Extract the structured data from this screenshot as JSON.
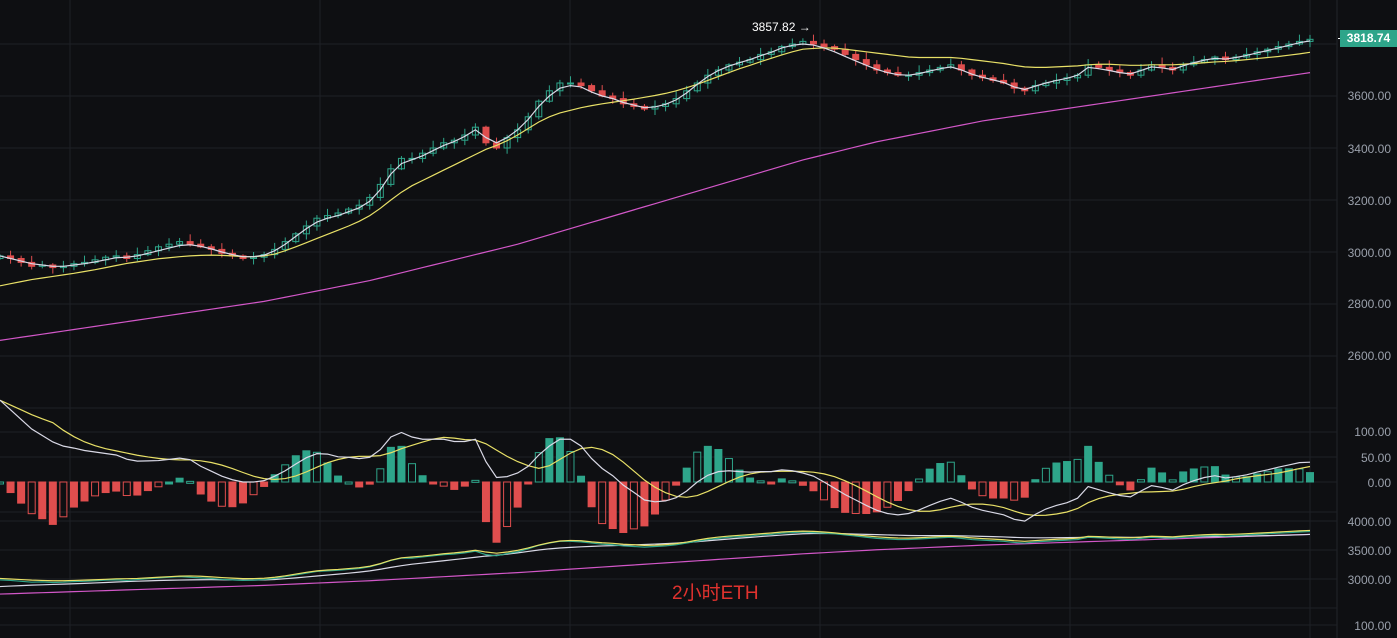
{
  "chart_data": {
    "type": "candlestick",
    "title": "2小时ETH",
    "symbol": "ETH",
    "interval": "2h",
    "last_price": "3818.74",
    "high_annotation": "3857.82",
    "high_arrow": "→",
    "panes": [
      {
        "name": "price",
        "yticks": [
          "3600.00",
          "3400.00",
          "3200.00",
          "3000.00",
          "2800.00",
          "2600.00"
        ],
        "ylim": [
          2540,
          3880
        ],
        "series": [
          {
            "name": "MA-fast",
            "color": "#d9d9e6"
          },
          {
            "name": "MA-mid",
            "color": "#e8e067"
          },
          {
            "name": "MA-slow",
            "color": "#d257c8"
          }
        ],
        "close_path": [
          2985,
          2975,
          2960,
          2945,
          2950,
          2940,
          2945,
          2955,
          2960,
          2970,
          2980,
          2985,
          2975,
          2990,
          3005,
          3020,
          3030,
          3040,
          3030,
          3020,
          3010,
          2995,
          2985,
          2975,
          2980,
          2990,
          3010,
          3040,
          3070,
          3100,
          3130,
          3140,
          3150,
          3165,
          3180,
          3210,
          3260,
          3320,
          3360,
          3360,
          3380,
          3400,
          3420,
          3430,
          3450,
          3480,
          3420,
          3400,
          3440,
          3470,
          3520,
          3580,
          3620,
          3650,
          3650,
          3640,
          3620,
          3600,
          3590,
          3570,
          3560,
          3550,
          3560,
          3570,
          3590,
          3620,
          3650,
          3680,
          3700,
          3720,
          3730,
          3740,
          3760,
          3770,
          3790,
          3800,
          3810,
          3800,
          3790,
          3780,
          3760,
          3740,
          3720,
          3700,
          3690,
          3680,
          3680,
          3690,
          3700,
          3710,
          3720,
          3700,
          3680,
          3670,
          3660,
          3650,
          3630,
          3620,
          3640,
          3650,
          3660,
          3670,
          3680,
          3720,
          3710,
          3700,
          3690,
          3680,
          3700,
          3720,
          3710,
          3700,
          3720,
          3730,
          3740,
          3750,
          3740,
          3750,
          3760,
          3770,
          3780,
          3790,
          3800,
          3810,
          3818
        ],
        "ma_fast": [
          2985,
          2975,
          2965,
          2955,
          2950,
          2945,
          2945,
          2950,
          2955,
          2962,
          2970,
          2978,
          2980,
          2985,
          2995,
          3005,
          3015,
          3025,
          3028,
          3022,
          3012,
          3000,
          2990,
          2982,
          2982,
          2988,
          3005,
          3030,
          3060,
          3090,
          3115,
          3130,
          3140,
          3155,
          3170,
          3195,
          3240,
          3300,
          3340,
          3355,
          3370,
          3390,
          3410,
          3425,
          3445,
          3470,
          3440,
          3420,
          3440,
          3470,
          3510,
          3560,
          3600,
          3630,
          3640,
          3635,
          3615,
          3600,
          3590,
          3575,
          3565,
          3555,
          3558,
          3568,
          3585,
          3612,
          3645,
          3675,
          3698,
          3715,
          3728,
          3740,
          3755,
          3768,
          3785,
          3795,
          3800,
          3796,
          3785,
          3770,
          3752,
          3735,
          3718,
          3702,
          3690,
          3682,
          3680,
          3686,
          3696,
          3705,
          3712,
          3700,
          3684,
          3672,
          3662,
          3652,
          3635,
          3625,
          3638,
          3650,
          3660,
          3668,
          3680,
          3710,
          3705,
          3698,
          3690,
          3685,
          3698,
          3712,
          3708,
          3702,
          3716,
          3728,
          3738,
          3745,
          3742,
          3748,
          3756,
          3766,
          3775,
          3785,
          3795,
          3805,
          3812
        ],
        "ma_mid": [
          2870,
          2878,
          2886,
          2894,
          2900,
          2906,
          2912,
          2918,
          2925,
          2932,
          2940,
          2948,
          2956,
          2962,
          2968,
          2974,
          2978,
          2982,
          2985,
          2987,
          2988,
          2987,
          2985,
          2982,
          2982,
          2985,
          2992,
          3005,
          3020,
          3036,
          3052,
          3068,
          3084,
          3100,
          3118,
          3140,
          3168,
          3200,
          3230,
          3255,
          3275,
          3295,
          3315,
          3335,
          3355,
          3375,
          3395,
          3410,
          3428,
          3450,
          3475,
          3500,
          3520,
          3535,
          3545,
          3555,
          3563,
          3570,
          3576,
          3582,
          3588,
          3595,
          3602,
          3610,
          3620,
          3632,
          3645,
          3660,
          3675,
          3690,
          3705,
          3718,
          3732,
          3745,
          3758,
          3770,
          3780,
          3783,
          3785,
          3784,
          3780,
          3775,
          3770,
          3765,
          3760,
          3755,
          3750,
          3748,
          3748,
          3748,
          3748,
          3745,
          3740,
          3735,
          3730,
          3725,
          3718,
          3712,
          3710,
          3710,
          3712,
          3714,
          3716,
          3720,
          3722,
          3722,
          3720,
          3718,
          3718,
          3720,
          3720,
          3720,
          3722,
          3725,
          3728,
          3731,
          3733,
          3736,
          3740,
          3744,
          3748,
          3752,
          3757,
          3762,
          3768
        ],
        "ma_slow": [
          2660,
          2666,
          2672,
          2678,
          2684,
          2690,
          2696,
          2702,
          2708,
          2714,
          2720,
          2726,
          2732,
          2738,
          2744,
          2750,
          2756,
          2762,
          2768,
          2774,
          2780,
          2786,
          2792,
          2798,
          2804,
          2810,
          2818,
          2826,
          2834,
          2842,
          2850,
          2858,
          2866,
          2874,
          2882,
          2890,
          2900,
          2910,
          2920,
          2930,
          2940,
          2950,
          2960,
          2970,
          2980,
          2990,
          3000,
          3010,
          3020,
          3030,
          3042,
          3054,
          3066,
          3078,
          3090,
          3102,
          3114,
          3126,
          3138,
          3150,
          3162,
          3174,
          3186,
          3198,
          3210,
          3222,
          3234,
          3246,
          3258,
          3270,
          3282,
          3294,
          3306,
          3318,
          3330,
          3342,
          3354,
          3364,
          3374,
          3384,
          3394,
          3404,
          3414,
          3424,
          3432,
          3440,
          3448,
          3456,
          3464,
          3472,
          3480,
          3488,
          3496,
          3504,
          3510,
          3516,
          3522,
          3528,
          3534,
          3540,
          3546,
          3552,
          3558,
          3564,
          3570,
          3576,
          3582,
          3588,
          3594,
          3600,
          3606,
          3612,
          3618,
          3624,
          3630,
          3636,
          3642,
          3648,
          3654,
          3660,
          3666,
          3672,
          3678,
          3684,
          3690
        ]
      },
      {
        "name": "MACD",
        "yticks": [
          "100.00",
          "50.00",
          "0.00"
        ],
        "ylim": [
          -50,
          130
        ],
        "series": [
          {
            "name": "DIF",
            "color": "#d9d9e6"
          },
          {
            "name": "DEA",
            "color": "#e8e067"
          },
          {
            "name": "histogram-positive",
            "color": "#2ea58a"
          },
          {
            "name": "histogram-negative",
            "color": "#e04e4e"
          }
        ]
      },
      {
        "name": "BOLL/MA overlay",
        "yticks": [
          "4000.00",
          "3500.00",
          "3000.00"
        ],
        "ylim": [
          2600,
          4200
        ]
      },
      {
        "name": "sub-indicator",
        "yticks": [
          "100.00"
        ]
      }
    ]
  },
  "colors": {
    "background": "#0e0f12",
    "grid": "#1e2026",
    "up": "#2ea58a",
    "down": "#e04e4e",
    "axis_text": "#9aa0ab",
    "watermark": "#e0322e"
  }
}
